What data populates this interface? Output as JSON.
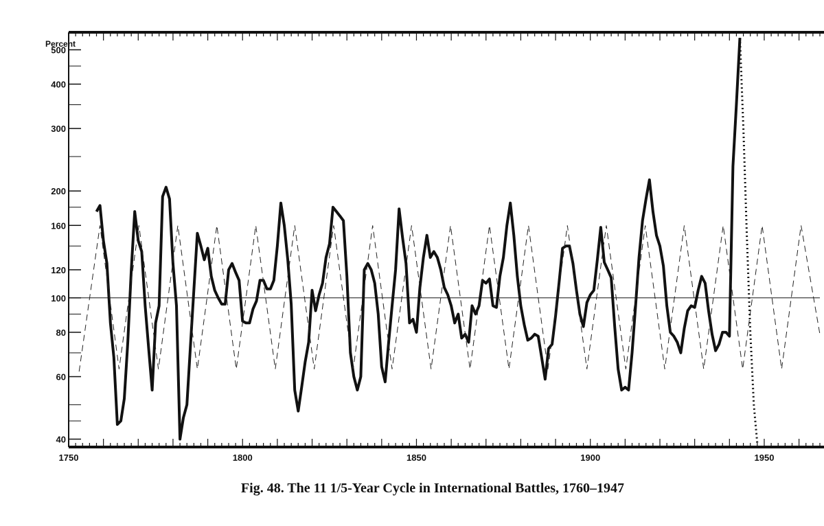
{
  "chart_data": {
    "type": "line",
    "caption": "Fig. 48.    The 11 1/5-Year Cycle in International Battles, 1760–1947",
    "ylabel": "Percent",
    "y_scale": "log",
    "ylim": [
      38,
      560
    ],
    "xlim": [
      1750,
      1966
    ],
    "y_ticks": [
      40,
      60,
      80,
      100,
      120,
      160,
      200,
      300,
      400,
      500
    ],
    "x_ticks": [
      1750,
      1800,
      1850,
      1900,
      1950
    ],
    "reference_line": 100,
    "series": [
      {
        "style": "solid-heavy",
        "x": [
          1758,
          1759,
          1760,
          1761,
          1762,
          1763,
          1764,
          1765,
          1766,
          1767,
          1768,
          1769,
          1770,
          1771,
          1772,
          1773,
          1774,
          1775,
          1776,
          1777,
          1778,
          1779,
          1780,
          1781,
          1782,
          1783,
          1784,
          1785,
          1786,
          1787,
          1788,
          1789,
          1790,
          1791,
          1792,
          1793,
          1794,
          1795,
          1796,
          1797,
          1798,
          1799,
          1800,
          1801,
          1802,
          1803,
          1804,
          1805,
          1806,
          1807,
          1808,
          1809,
          1810,
          1811,
          1812,
          1813,
          1814,
          1815,
          1816,
          1817,
          1818,
          1819,
          1820,
          1821,
          1822,
          1823,
          1824,
          1825,
          1826,
          1827,
          1828,
          1829,
          1830,
          1831,
          1832,
          1833,
          1834,
          1835,
          1836,
          1837,
          1838,
          1839,
          1840,
          1841,
          1842,
          1843,
          1844,
          1845,
          1846,
          1847,
          1848,
          1849,
          1850,
          1851,
          1852,
          1853,
          1854,
          1855,
          1856,
          1857,
          1858,
          1859,
          1860,
          1861,
          1862,
          1863,
          1864,
          1865,
          1866,
          1867,
          1868,
          1869,
          1870,
          1871,
          1872,
          1873,
          1874,
          1875,
          1876,
          1877,
          1878,
          1879,
          1880,
          1881,
          1882,
          1883,
          1884,
          1885,
          1886,
          1887,
          1888,
          1889,
          1890,
          1891,
          1892,
          1893,
          1894,
          1895,
          1896,
          1897,
          1898,
          1899,
          1900,
          1901,
          1902,
          1903,
          1904,
          1905,
          1906,
          1907,
          1908,
          1909,
          1910,
          1911,
          1912,
          1913,
          1914,
          1915,
          1916,
          1917,
          1918,
          1919,
          1920,
          1921,
          1922,
          1923,
          1924,
          1925,
          1926,
          1927,
          1928,
          1929,
          1930,
          1931,
          1932,
          1933,
          1934,
          1935,
          1936,
          1937,
          1938,
          1939,
          1940,
          1941,
          1942,
          1943
        ],
        "values": [
          175,
          182,
          145,
          125,
          85,
          68,
          44,
          45,
          52,
          75,
          120,
          175,
          145,
          135,
          95,
          72,
          55,
          85,
          95,
          193,
          205,
          190,
          125,
          95,
          40,
          46,
          50,
          73,
          105,
          152,
          140,
          128,
          138,
          115,
          105,
          100,
          96,
          96,
          120,
          125,
          118,
          112,
          86,
          85,
          85,
          93,
          98,
          112,
          112,
          106,
          106,
          112,
          140,
          185,
          160,
          128,
          96,
          55,
          48,
          56,
          66,
          75,
          105,
          92,
          102,
          110,
          130,
          142,
          180,
          175,
          170,
          165,
          115,
          70,
          60,
          55,
          60,
          120,
          125,
          120,
          110,
          90,
          64,
          58,
          75,
          95,
          120,
          178,
          148,
          125,
          85,
          87,
          80,
          107,
          130,
          150,
          130,
          135,
          130,
          120,
          107,
          102,
          95,
          85,
          90,
          77,
          79,
          75,
          95,
          90,
          95,
          112,
          110,
          113,
          95,
          94,
          115,
          130,
          160,
          185,
          150,
          115,
          95,
          84,
          76,
          77,
          79,
          78,
          68,
          59,
          72,
          74,
          89,
          110,
          138,
          140,
          140,
          125,
          105,
          90,
          83,
          97,
          102,
          105,
          128,
          158,
          126,
          120,
          114,
          83,
          63,
          55,
          56,
          55,
          70,
          95,
          130,
          165,
          190,
          215,
          175,
          150,
          140,
          123,
          95,
          80,
          78,
          75,
          70,
          82,
          92,
          95,
          94,
          105,
          115,
          110,
          92,
          79,
          71,
          74,
          80,
          80,
          78,
          235,
          350,
          540
        ]
      },
      {
        "style": "dashed",
        "x": [
          1753,
          1759,
          1764.5,
          1770.2,
          1775.8,
          1781.4,
          1787,
          1792.6,
          1798.2,
          1803.8,
          1809.4,
          1815,
          1820.6,
          1826.2,
          1831.8,
          1837.4,
          1843,
          1848.6,
          1854.2,
          1859.8,
          1865.4,
          1871,
          1876.6,
          1882.2,
          1887.8,
          1893.4,
          1899,
          1904.6,
          1910.2,
          1915.8,
          1921.4,
          1927,
          1932.6,
          1938.2,
          1943.8,
          1949.4,
          1955,
          1960.6,
          1966
        ],
        "values": [
          62,
          160,
          63,
          160,
          63,
          160,
          63,
          160,
          63,
          160,
          63,
          160,
          63,
          160,
          63,
          160,
          63,
          160,
          63,
          160,
          63,
          160,
          63,
          160,
          63,
          160,
          63,
          160,
          63,
          160,
          63,
          160,
          63,
          160,
          63,
          160,
          63,
          160,
          79
        ]
      },
      {
        "style": "dotted",
        "x": [
          1943,
          1944,
          1945,
          1946,
          1947,
          1948
        ],
        "values": [
          540,
          300,
          150,
          80,
          50,
          39
        ]
      }
    ]
  }
}
